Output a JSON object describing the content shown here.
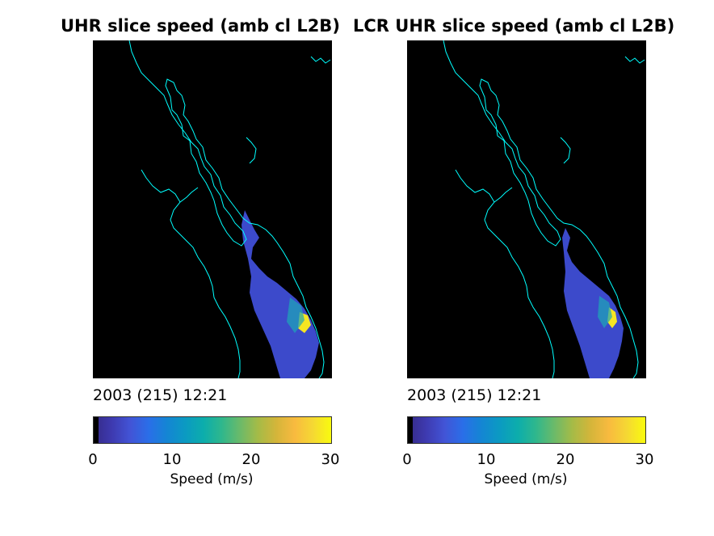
{
  "chart_data": [
    {
      "type": "heatmap",
      "title": "UHR slice speed (amb cl L2B)",
      "timestamp": "2003 (215) 12:21",
      "colorbar": {
        "label": "Speed (m/s)",
        "ticks": [
          0,
          10,
          20,
          30
        ],
        "range": [
          0,
          30
        ],
        "colormap": "parula"
      },
      "background": "#000000",
      "coastline_color": "#00ffff"
    },
    {
      "type": "heatmap",
      "title": "LCR UHR slice speed (amb cl L2B)",
      "timestamp": "2003 (215) 12:21",
      "colorbar": {
        "label": "Speed (m/s)",
        "ticks": [
          0,
          10,
          20,
          30
        ],
        "range": [
          0,
          30
        ],
        "colormap": "parula"
      },
      "background": "#000000",
      "coastline_color": "#00ffff"
    }
  ]
}
